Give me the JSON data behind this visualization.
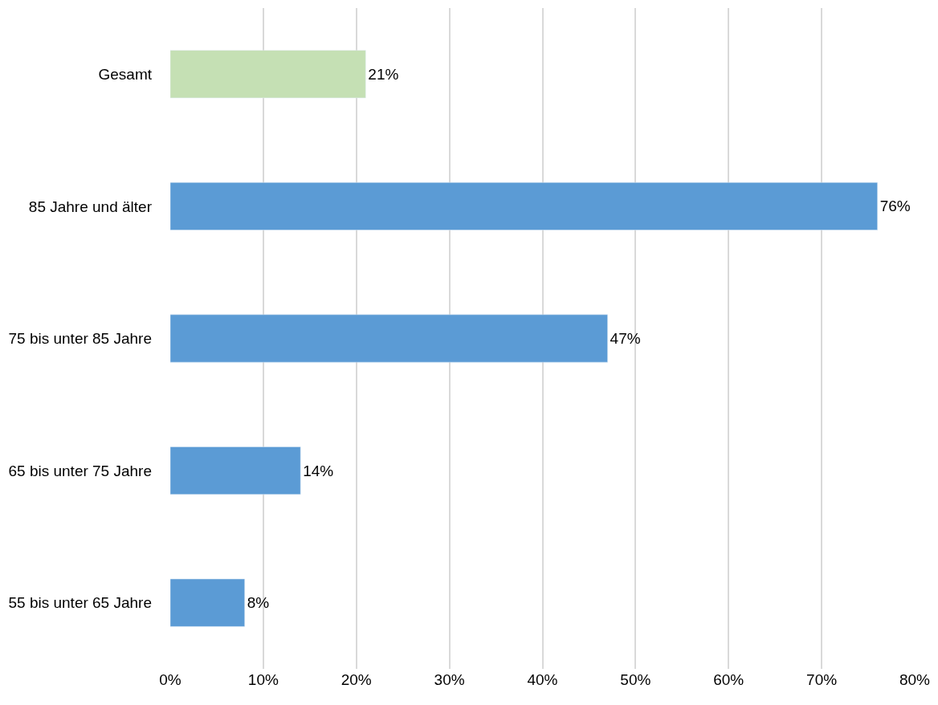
{
  "chart_data": {
    "type": "bar",
    "orientation": "horizontal",
    "categories": [
      "Gesamt",
      "85 Jahre und älter",
      "75 bis unter 85 Jahre",
      "65 bis unter 75 Jahre",
      "55 bis unter 65 Jahre"
    ],
    "values": [
      21,
      76,
      47,
      14,
      8
    ],
    "colors": [
      "#c5e0b4",
      "#5b9bd5",
      "#5b9bd5",
      "#5b9bd5",
      "#5b9bd5"
    ],
    "value_labels": [
      "21%",
      "76%",
      "47%",
      "14%",
      "8%"
    ],
    "xlim": [
      0,
      80
    ],
    "xticks": [
      {
        "value": 0,
        "label": "0%"
      },
      {
        "value": 10,
        "label": "10%"
      },
      {
        "value": 20,
        "label": "20%"
      },
      {
        "value": 30,
        "label": "30%"
      },
      {
        "value": 40,
        "label": "40%"
      },
      {
        "value": 50,
        "label": "50%"
      },
      {
        "value": 60,
        "label": "60%"
      },
      {
        "value": 70,
        "label": "70%"
      },
      {
        "value": 80,
        "label": "80%"
      }
    ],
    "grid": "x"
  }
}
